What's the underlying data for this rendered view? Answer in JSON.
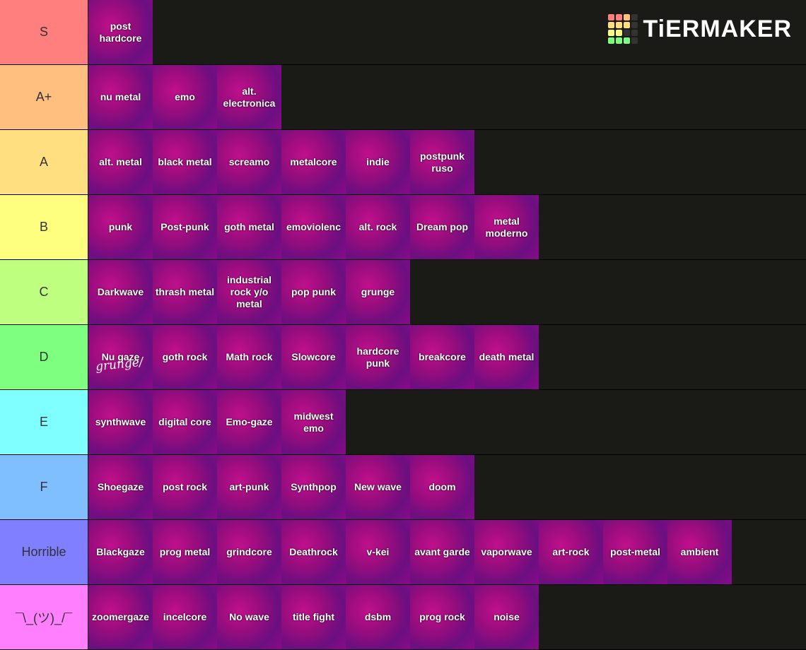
{
  "logo": "TiERMAKER",
  "tiers": [
    {
      "label": "S",
      "color": "#ff7f7f",
      "items": [
        "post hardcore"
      ]
    },
    {
      "label": "A+",
      "color": "#ffbf7f",
      "items": [
        "nu metal",
        "emo",
        "alt. electronica"
      ]
    },
    {
      "label": "A",
      "color": "#ffdf7f",
      "items": [
        "alt. metal",
        "black metal",
        "screamo",
        "metalcore",
        "indie",
        "postpunk ruso"
      ]
    },
    {
      "label": "B",
      "color": "#ffff7f",
      "items": [
        "punk",
        "Post-punk",
        "goth metal",
        "emoviolenc",
        "alt. rock",
        "Dream pop",
        "metal moderno"
      ]
    },
    {
      "label": "C",
      "color": "#bfff7f",
      "items": [
        "Darkwave",
        "thrash metal",
        "industrial rock y/o metal",
        "pop punk",
        "grunge"
      ]
    },
    {
      "label": "D",
      "color": "#7fff7f",
      "items": [
        "Nu gaze",
        "goth rock",
        "Math rock",
        "Slowcore",
        "hardcore punk",
        "breakcore",
        "death metal"
      ],
      "note": "grunge/"
    },
    {
      "label": "E",
      "color": "#7fffff",
      "items": [
        "synthwave",
        "digital core",
        "Emo-gaze",
        "midwest emo"
      ]
    },
    {
      "label": "F",
      "color": "#7fbfff",
      "items": [
        "Shoegaze",
        "post rock",
        "art-punk",
        "Synthpop",
        "New wave",
        "doom"
      ]
    },
    {
      "label": "Horrible",
      "color": "#7f7fff",
      "items": [
        "Blackgaze",
        "prog metal",
        "grindcore",
        "Deathrock",
        "v-kei",
        "avant garde",
        "vaporwave",
        "art-rock",
        "post-metal",
        "ambient"
      ]
    },
    {
      "label": "¯\\_(ツ)_/¯",
      "color": "#ff7fff",
      "items": [
        "zoomergaze",
        "incelcore",
        "No wave",
        "title fight",
        "dsbm",
        "prog rock",
        "noise"
      ]
    }
  ]
}
